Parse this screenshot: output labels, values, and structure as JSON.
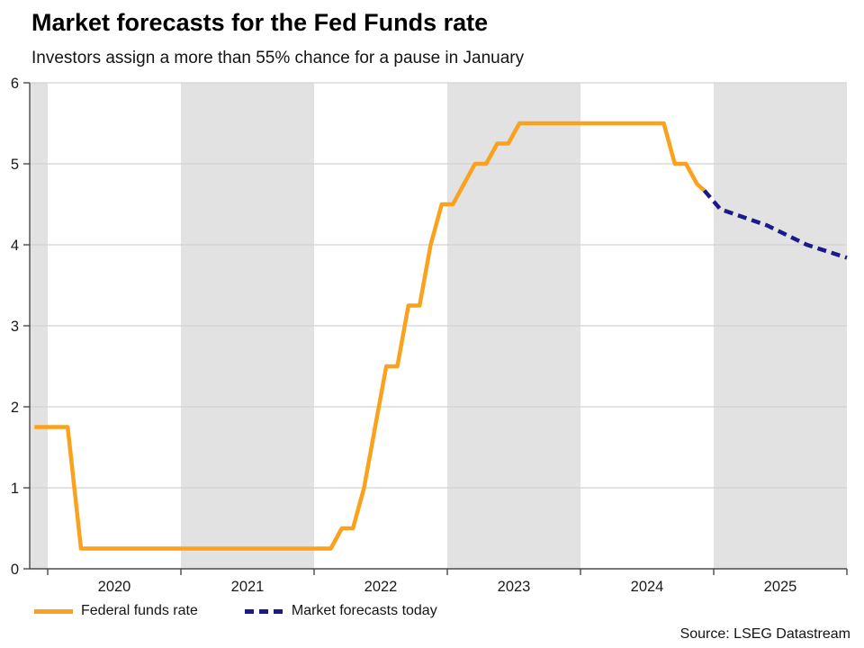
{
  "header": {
    "title": "Market forecasts for the Fed Funds rate",
    "subtitle": "Investors assign a more than 55% chance for a pause in January"
  },
  "legend": {
    "items": [
      {
        "label": "Federal funds rate",
        "color": "#FAA21E",
        "style": "solid"
      },
      {
        "label": "Market forecasts today",
        "color": "#1A1A8C",
        "style": "dashed"
      }
    ]
  },
  "source": {
    "text": "Source: LSEG Datastream"
  },
  "colors": {
    "band_gray": "#E2E2E2",
    "gridline": "#D2D2D2",
    "axis": "#4A4A4A",
    "tick_label": "#1A1A1A",
    "series_actual": "#FAA21E",
    "series_forecast": "#1A1A8C"
  },
  "chart_data": {
    "type": "line",
    "title": "Market forecasts for the Fed Funds rate",
    "subtitle": "Investors assign a more than 55% chance for a pause in January",
    "grid": "horizontal-on",
    "legend_position": "bottom-left",
    "x_axis": {
      "min": 2019.865,
      "max": 2026.0,
      "year_ticks": [
        2020,
        2021,
        2022,
        2023,
        2024,
        2025,
        2026
      ],
      "year_labels": [
        {
          "text": "2020",
          "x": 2020.5
        },
        {
          "text": "2021",
          "x": 2021.5
        },
        {
          "text": "2022",
          "x": 2022.5
        },
        {
          "text": "2023",
          "x": 2023.5
        },
        {
          "text": "2024",
          "x": 2024.5
        },
        {
          "text": "2025",
          "x": 2025.5
        }
      ]
    },
    "y_axis": {
      "min": 0,
      "max": 6,
      "ticks": [
        0,
        1,
        2,
        3,
        4,
        5,
        6
      ]
    },
    "shaded_bands": [
      [
        2019.865,
        2020.0
      ],
      [
        2021.0,
        2022.0
      ],
      [
        2023.0,
        2024.0
      ],
      [
        2025.0,
        2026.0
      ]
    ],
    "series": [
      {
        "name": "Federal funds rate",
        "color": "#FAA21E",
        "dash": "",
        "points": [
          [
            2019.9,
            1.75
          ],
          [
            2020.15,
            1.75
          ],
          [
            2020.25,
            0.25
          ],
          [
            2022.125,
            0.25
          ],
          [
            2022.208,
            0.5
          ],
          [
            2022.292,
            0.5
          ],
          [
            2022.375,
            1.0
          ],
          [
            2022.458,
            1.75
          ],
          [
            2022.542,
            2.5
          ],
          [
            2022.625,
            2.5
          ],
          [
            2022.708,
            3.25
          ],
          [
            2022.792,
            3.25
          ],
          [
            2022.875,
            4.0
          ],
          [
            2022.958,
            4.5
          ],
          [
            2023.042,
            4.5
          ],
          [
            2023.208,
            5.0
          ],
          [
            2023.292,
            5.0
          ],
          [
            2023.375,
            5.25
          ],
          [
            2023.458,
            5.25
          ],
          [
            2023.542,
            5.5
          ],
          [
            2024.625,
            5.5
          ],
          [
            2024.708,
            5.0
          ],
          [
            2024.792,
            5.0
          ],
          [
            2024.875,
            4.75
          ],
          [
            2024.93,
            4.67
          ]
        ]
      },
      {
        "name": "Market forecasts today",
        "color": "#1A1A8C",
        "dash": "10 6",
        "points": [
          [
            2024.93,
            4.67
          ],
          [
            2025.05,
            4.44
          ],
          [
            2025.4,
            4.24
          ],
          [
            2025.7,
            4.0
          ],
          [
            2026.0,
            3.84
          ]
        ]
      }
    ]
  }
}
